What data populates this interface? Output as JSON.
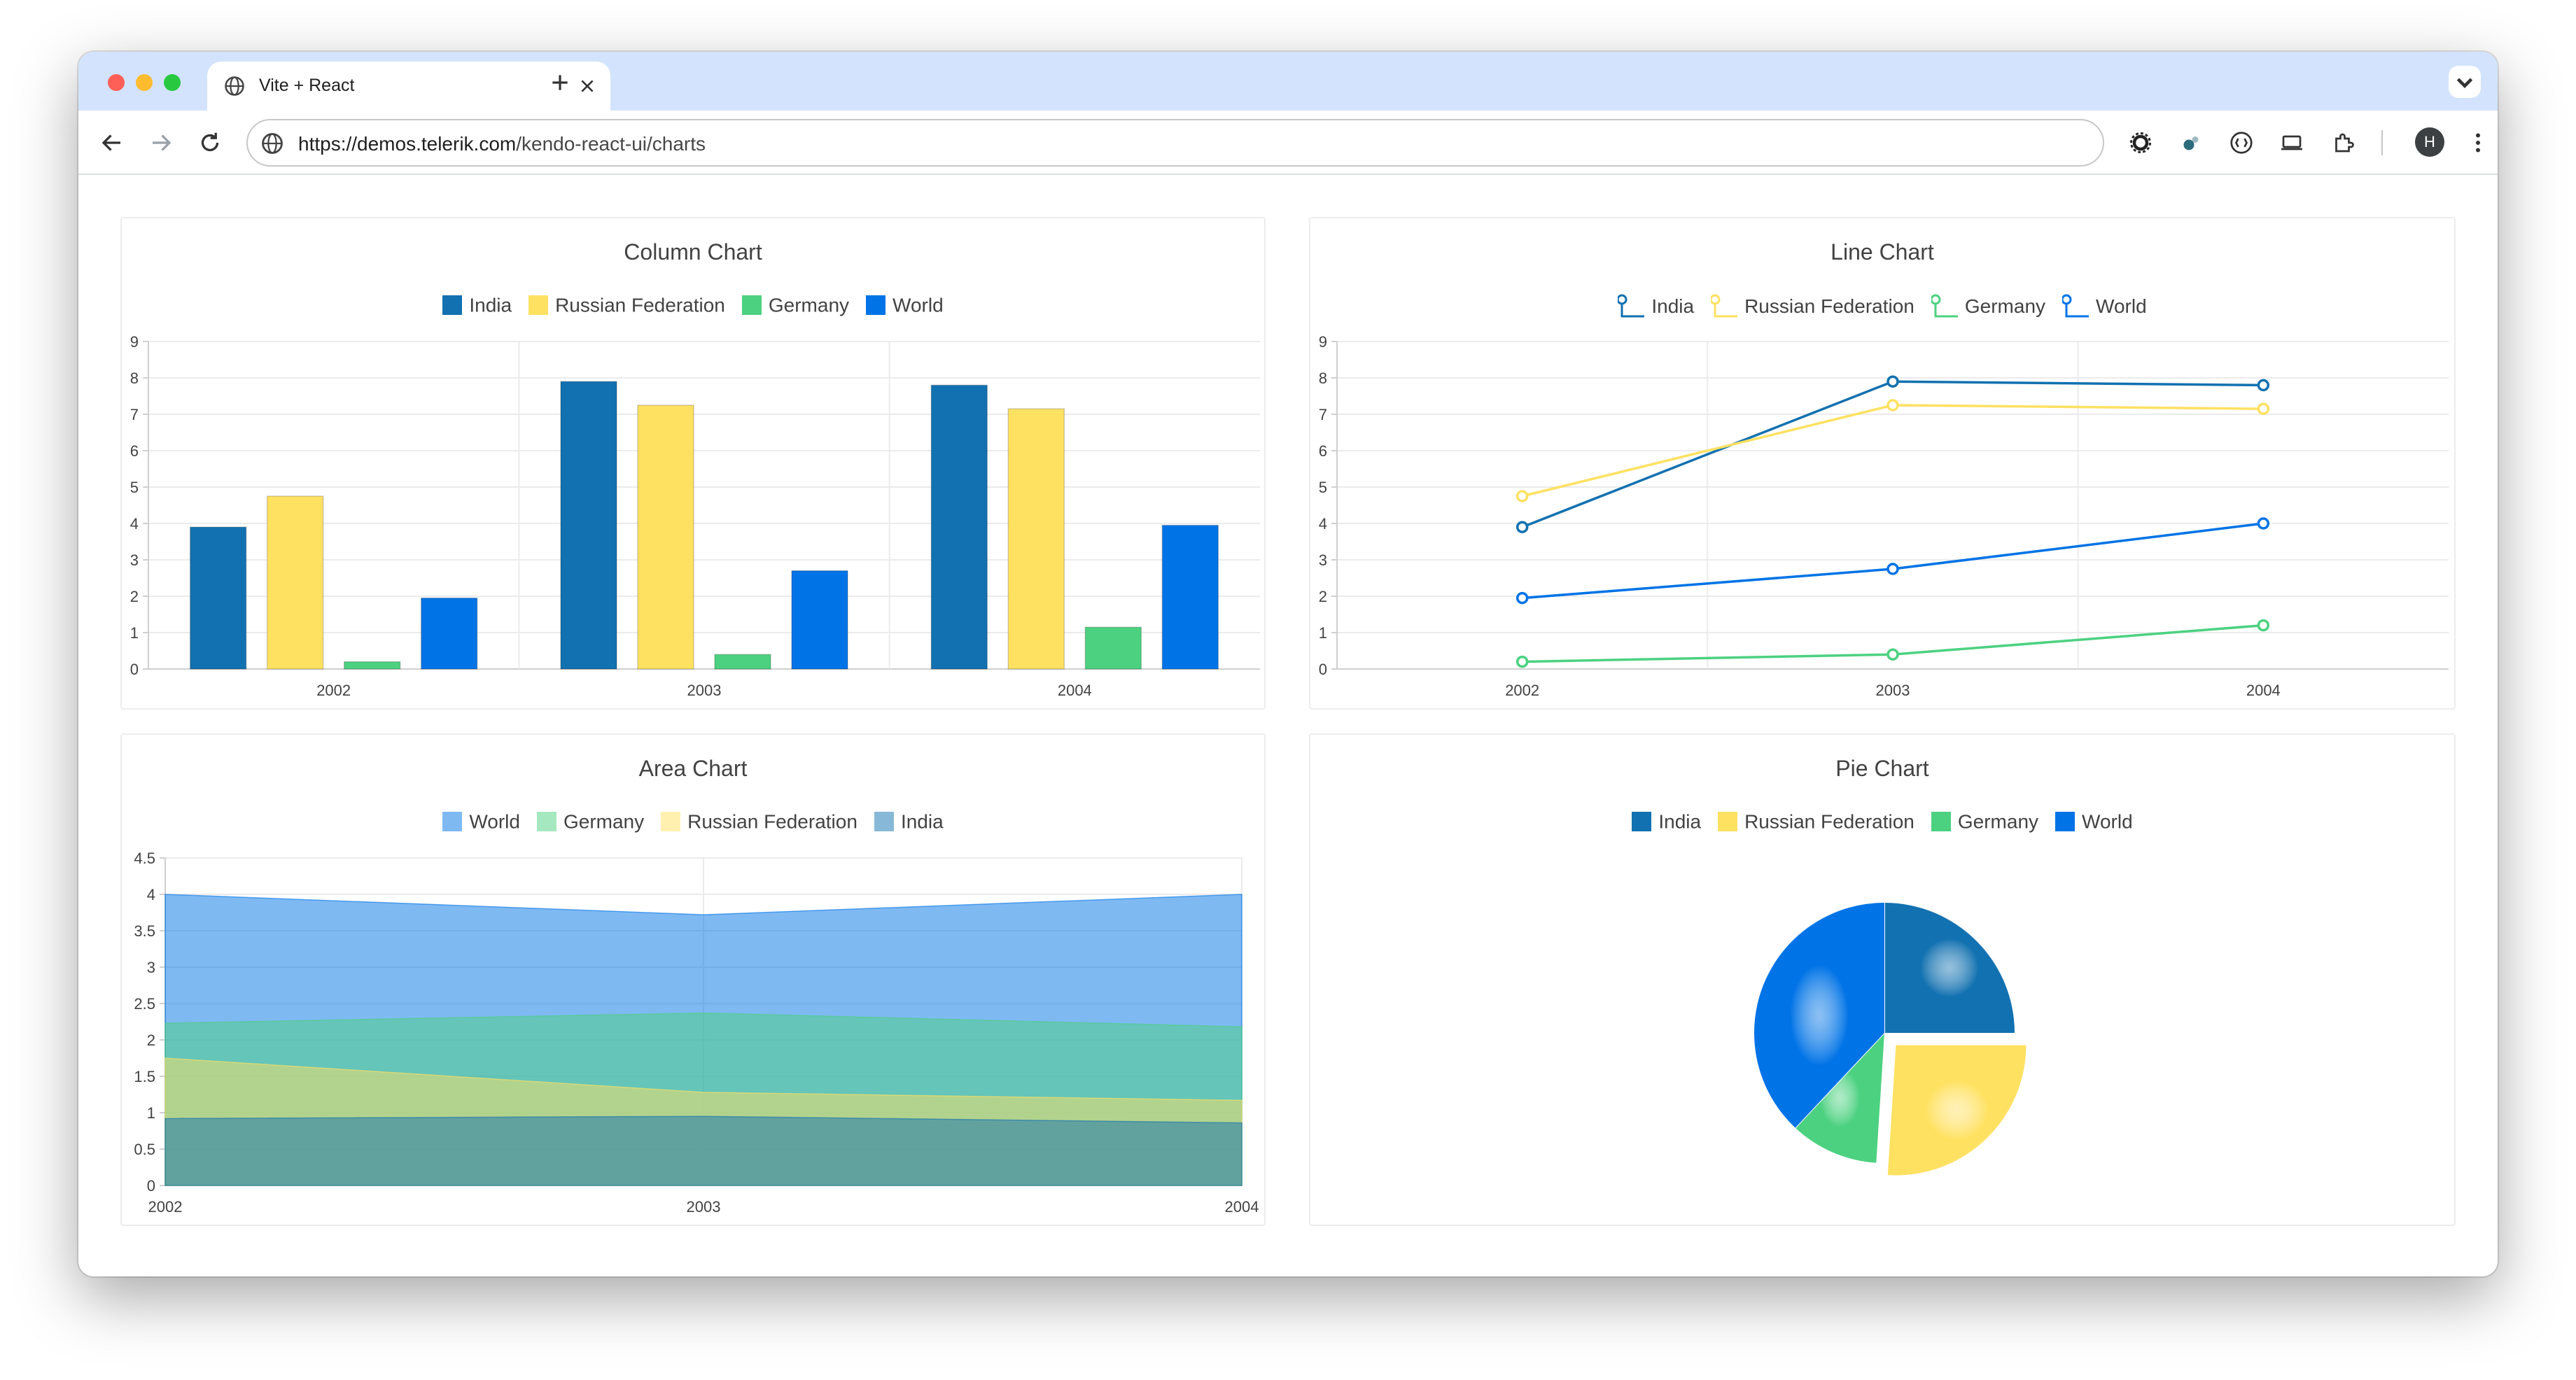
{
  "browser": {
    "tab_title": "Vite + React",
    "url_host": "https://demos.telerik.com",
    "url_path": "/kendo-react-ui/charts",
    "avatar_letter": "H"
  },
  "colors": {
    "india": "#1271b0",
    "russia": "#ffe162",
    "germany": "#4cd180",
    "world": "#0073e6"
  },
  "chart_data": [
    {
      "type": "bar",
      "title": "Column Chart",
      "categories": [
        "2002",
        "2003",
        "2004"
      ],
      "ylim": [
        0,
        9
      ],
      "yticks": [
        "0",
        "1",
        "2",
        "3",
        "4",
        "5",
        "6",
        "7",
        "8",
        "9"
      ],
      "legend_position": "top",
      "series": [
        {
          "name": "India",
          "values": [
            3.9,
            7.9,
            7.8
          ]
        },
        {
          "name": "Russian Federation",
          "values": [
            4.75,
            7.25,
            7.15
          ]
        },
        {
          "name": "Germany",
          "values": [
            0.2,
            0.4,
            1.15
          ]
        },
        {
          "name": "World",
          "values": [
            1.95,
            2.7,
            3.95
          ]
        }
      ]
    },
    {
      "type": "line",
      "title": "Line Chart",
      "categories": [
        "2002",
        "2003",
        "2004"
      ],
      "ylim": [
        0,
        9
      ],
      "yticks": [
        "0",
        "1",
        "2",
        "3",
        "4",
        "5",
        "6",
        "7",
        "8",
        "9"
      ],
      "legend_position": "top",
      "series": [
        {
          "name": "India",
          "values": [
            3.9,
            7.9,
            7.8
          ]
        },
        {
          "name": "Russian Federation",
          "values": [
            4.75,
            7.25,
            7.15
          ]
        },
        {
          "name": "Germany",
          "values": [
            0.2,
            0.4,
            1.2
          ]
        },
        {
          "name": "World",
          "values": [
            1.95,
            2.75,
            4.0
          ]
        }
      ]
    },
    {
      "type": "area",
      "title": "Area Chart",
      "categories": [
        "2002",
        "2003",
        "2004"
      ],
      "ylim": [
        0,
        4.5
      ],
      "yticks": [
        "0",
        "0.5",
        "1",
        "1.5",
        "2",
        "2.5",
        "3",
        "3.5",
        "4",
        "4.5"
      ],
      "legend_position": "top",
      "series": [
        {
          "name": "World",
          "values": [
            4.0,
            3.72,
            4.0
          ]
        },
        {
          "name": "Germany",
          "values": [
            2.23,
            2.37,
            2.18
          ]
        },
        {
          "name": "Russian Federation",
          "values": [
            1.75,
            1.28,
            1.17
          ]
        },
        {
          "name": "India",
          "values": [
            0.92,
            0.95,
            0.86
          ]
        }
      ]
    },
    {
      "type": "pie",
      "title": "Pie Chart",
      "legend_position": "top",
      "series": [
        {
          "name": "India",
          "value": 0.25
        },
        {
          "name": "Russian Federation",
          "value": 0.26
        },
        {
          "name": "Germany",
          "value": 0.11
        },
        {
          "name": "World",
          "value": 0.38
        }
      ]
    }
  ]
}
